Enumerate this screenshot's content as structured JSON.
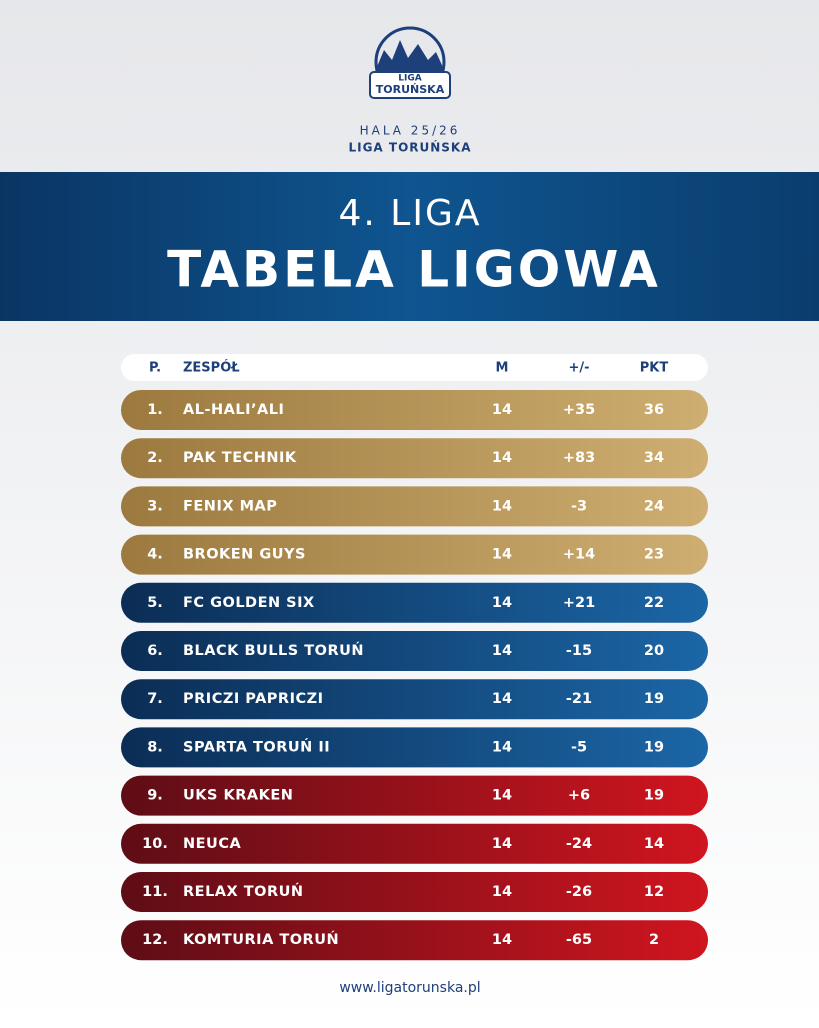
{
  "logo": {
    "line1": "LIGA",
    "line2": "TORUŃSKA"
  },
  "header": {
    "season": "HALA 25/26",
    "league": "LIGA TORUŃSKA"
  },
  "banner": {
    "subtitle": "4. LIGA",
    "title": "TABELA LIGOWA"
  },
  "table": {
    "columns": [
      "P.",
      "ZESPÓŁ",
      "M",
      "+/-",
      "PKT"
    ],
    "rows": [
      [
        "1.",
        "AL-HALI’ALI",
        "14",
        "+35",
        "36"
      ],
      [
        "2.",
        "PAK TECHNIK",
        "14",
        "+83",
        "34"
      ],
      [
        "3.",
        "FENIX MAP",
        "14",
        "-3",
        "24"
      ],
      [
        "4.",
        "BROKEN GUYS",
        "14",
        "+14",
        "23"
      ],
      [
        "5.",
        "FC GOLDEN SIX",
        "14",
        "+21",
        "22"
      ],
      [
        "6.",
        "BLACK BULLS TORUŃ",
        "14",
        "-15",
        "20"
      ],
      [
        "7.",
        "PRICZI PAPRICZI",
        "14",
        "-21",
        "19"
      ],
      [
        "8.",
        "SPARTA TORUŃ II",
        "14",
        "-5",
        "19"
      ],
      [
        "9.",
        "UKS KRAKEN",
        "14",
        "+6",
        "19"
      ],
      [
        "10.",
        "NEUCA",
        "14",
        "-24",
        "14"
      ],
      [
        "11.",
        "RELAX TORUŃ",
        "14",
        "-26",
        "12"
      ],
      [
        "12.",
        "KOMTURIA TORUŃ",
        "14",
        "-65",
        "2"
      ]
    ]
  },
  "footer": {
    "url": "www.ligatorunska.pl"
  }
}
